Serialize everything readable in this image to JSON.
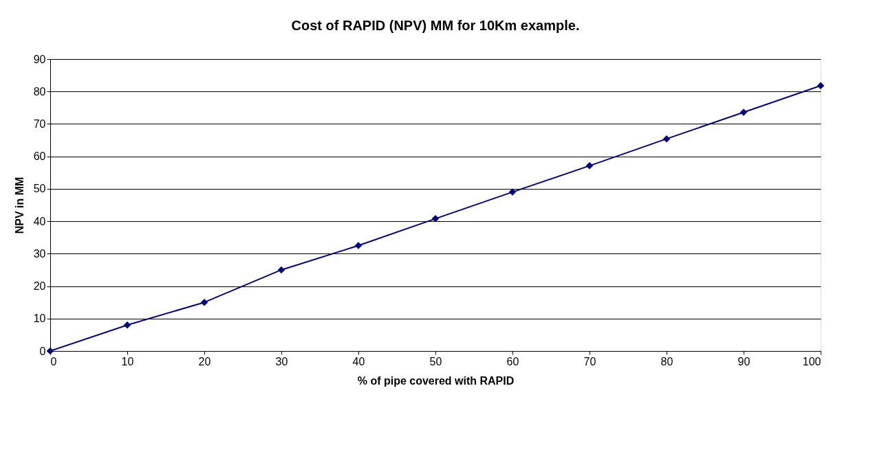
{
  "chart_data": {
    "type": "line",
    "title": "Cost of RAPID (NPV) MM for 10Km example.",
    "xlabel": "% of pipe covered with RAPID",
    "ylabel": "NPV in MM",
    "x": [
      0,
      10,
      20,
      30,
      40,
      50,
      60,
      70,
      80,
      90,
      100
    ],
    "series": [
      {
        "color": "#000080",
        "values": [
          0,
          8.0,
          15.0,
          25.0,
          32.5,
          40.8,
          49.0,
          57.1,
          65.4,
          73.6,
          81.8
        ]
      }
    ],
    "xlim": [
      0,
      100
    ],
    "xticks": [
      0,
      10,
      20,
      30,
      40,
      50,
      60,
      70,
      80,
      90,
      100
    ],
    "ylim": [
      0,
      90
    ],
    "yticks": [
      0,
      10,
      20,
      30,
      40,
      50,
      60,
      70,
      80,
      90
    ],
    "grid": "y",
    "legend": false,
    "marker": "diamond",
    "line_style": "solid"
  }
}
